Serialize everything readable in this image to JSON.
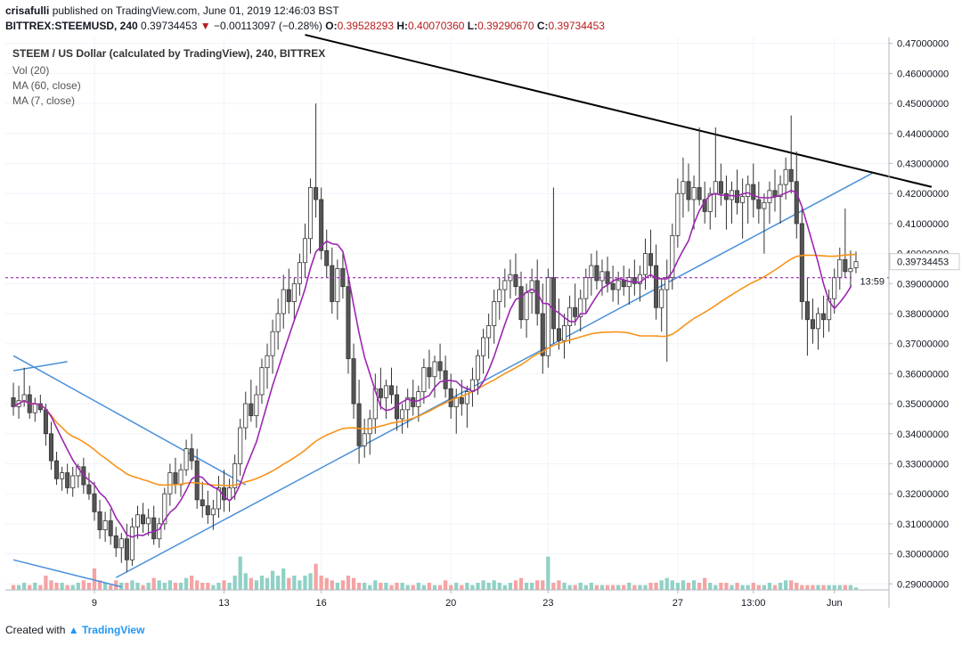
{
  "header": {
    "author": "crisafulli",
    "published": "published on TradingView.com, June 01, 2019 12:46:03 BST",
    "symbol": "BITTREX:STEEMUSD, 240",
    "last": "0.39734453",
    "change_icon": "down-triangle-icon",
    "change": "−0.00113097 (−0.28%)",
    "o_label": "O:",
    "o_value": "0.39528293",
    "h_label": "H:",
    "h_value": "0.40070360",
    "l_label": "L:",
    "l_value": "0.39290670",
    "c_label": "C:",
    "c_value": "0.39734453"
  },
  "legend": {
    "title": "STEEM / US Dollar (calculated by TradingView), 240, BITTREX",
    "vol": "Vol (20)",
    "ma60": "MA (60, close)",
    "ma7": "MA (7, close)"
  },
  "footer": {
    "created_with": "Created with",
    "brand": "TradingView",
    "logo_icon": "tradingview-logo-icon"
  },
  "colors": {
    "candle_up": "#ffffff",
    "candle_down": "#555555",
    "wick": "#333333",
    "ma60": "#f7931a",
    "ma7": "#9c27b0",
    "trend": "#4a90d9",
    "resistance": "#000000",
    "price_line": "#9c27b0",
    "vol_up": "#8fd1c5",
    "vol_down": "#f5a3a3",
    "grid": "#f0f3fa"
  },
  "chart_data": {
    "type": "candlestick",
    "title": "STEEM / US Dollar (calculated by TradingView), 240, BITTREX",
    "grid": true,
    "y_axis": {
      "min": 0.288,
      "max": 0.472,
      "ticks": [
        "0.47000000",
        "0.46000000",
        "0.45000000",
        "0.44000000",
        "0.43000000",
        "0.42000000",
        "0.41000000",
        "0.40000000",
        "0.39000000",
        "0.38000000",
        "0.37000000",
        "0.36000000",
        "0.35000000",
        "0.34000000",
        "0.33000000",
        "0.32000000",
        "0.31000000",
        "0.30000000",
        "0.29000000"
      ],
      "tick_values": [
        0.47,
        0.46,
        0.45,
        0.44,
        0.43,
        0.42,
        0.41,
        0.4,
        0.39,
        0.38,
        0.37,
        0.36,
        0.35,
        0.34,
        0.33,
        0.32,
        0.31,
        0.3,
        0.29
      ]
    },
    "x_axis": {
      "ticks": [
        {
          "label": "9",
          "i": 15
        },
        {
          "label": "13",
          "i": 39
        },
        {
          "label": "16",
          "i": 57
        },
        {
          "label": "20",
          "i": 81
        },
        {
          "label": "23",
          "i": 99
        },
        {
          "label": "27",
          "i": 123
        },
        {
          "label": "13:00",
          "i": 137
        },
        {
          "label": "Jun",
          "i": 152
        }
      ]
    },
    "last_price": "0.39734453",
    "countdown": "13:59",
    "candles": [
      [
        0.352,
        0.357,
        0.346,
        0.349
      ],
      [
        0.349,
        0.356,
        0.345,
        0.351
      ],
      [
        0.351,
        0.362,
        0.349,
        0.353
      ],
      [
        0.353,
        0.356,
        0.345,
        0.347
      ],
      [
        0.347,
        0.352,
        0.344,
        0.35
      ],
      [
        0.35,
        0.353,
        0.347,
        0.348
      ],
      [
        0.348,
        0.35,
        0.336,
        0.34
      ],
      [
        0.34,
        0.344,
        0.328,
        0.331
      ],
      [
        0.331,
        0.334,
        0.323,
        0.325
      ],
      [
        0.325,
        0.329,
        0.321,
        0.327
      ],
      [
        0.327,
        0.33,
        0.32,
        0.322
      ],
      [
        0.322,
        0.329,
        0.319,
        0.326
      ],
      [
        0.326,
        0.33,
        0.322,
        0.329
      ],
      [
        0.329,
        0.332,
        0.32,
        0.323
      ],
      [
        0.323,
        0.327,
        0.318,
        0.32
      ],
      [
        0.32,
        0.324,
        0.311,
        0.314
      ],
      [
        0.314,
        0.318,
        0.305,
        0.308
      ],
      [
        0.308,
        0.314,
        0.304,
        0.311
      ],
      [
        0.311,
        0.315,
        0.303,
        0.306
      ],
      [
        0.306,
        0.309,
        0.299,
        0.302
      ],
      [
        0.302,
        0.307,
        0.297,
        0.305
      ],
      [
        0.305,
        0.31,
        0.294,
        0.298
      ],
      [
        0.298,
        0.312,
        0.296,
        0.309
      ],
      [
        0.309,
        0.316,
        0.305,
        0.313
      ],
      [
        0.313,
        0.317,
        0.307,
        0.31
      ],
      [
        0.31,
        0.315,
        0.306,
        0.312
      ],
      [
        0.312,
        0.316,
        0.303,
        0.305
      ],
      [
        0.305,
        0.312,
        0.302,
        0.31
      ],
      [
        0.31,
        0.322,
        0.308,
        0.32
      ],
      [
        0.32,
        0.33,
        0.316,
        0.327
      ],
      [
        0.327,
        0.332,
        0.32,
        0.323
      ],
      [
        0.323,
        0.33,
        0.319,
        0.328
      ],
      [
        0.328,
        0.338,
        0.326,
        0.335
      ],
      [
        0.335,
        0.34,
        0.328,
        0.331
      ],
      [
        0.331,
        0.335,
        0.315,
        0.318
      ],
      [
        0.318,
        0.324,
        0.312,
        0.316
      ],
      [
        0.316,
        0.321,
        0.31,
        0.313
      ],
      [
        0.313,
        0.318,
        0.308,
        0.315
      ],
      [
        0.315,
        0.326,
        0.312,
        0.322
      ],
      [
        0.322,
        0.328,
        0.314,
        0.318
      ],
      [
        0.318,
        0.325,
        0.314,
        0.322
      ],
      [
        0.322,
        0.333,
        0.318,
        0.33
      ],
      [
        0.33,
        0.345,
        0.326,
        0.342
      ],
      [
        0.342,
        0.354,
        0.338,
        0.35
      ],
      [
        0.35,
        0.358,
        0.344,
        0.346
      ],
      [
        0.346,
        0.356,
        0.342,
        0.353
      ],
      [
        0.353,
        0.365,
        0.35,
        0.362
      ],
      [
        0.362,
        0.37,
        0.355,
        0.366
      ],
      [
        0.366,
        0.378,
        0.36,
        0.374
      ],
      [
        0.374,
        0.385,
        0.368,
        0.38
      ],
      [
        0.38,
        0.393,
        0.375,
        0.388
      ],
      [
        0.388,
        0.395,
        0.38,
        0.384
      ],
      [
        0.384,
        0.392,
        0.378,
        0.39
      ],
      [
        0.39,
        0.4,
        0.386,
        0.397
      ],
      [
        0.397,
        0.41,
        0.392,
        0.405
      ],
      [
        0.405,
        0.425,
        0.4,
        0.422
      ],
      [
        0.422,
        0.45,
        0.412,
        0.418
      ],
      [
        0.418,
        0.422,
        0.398,
        0.401
      ],
      [
        0.401,
        0.408,
        0.392,
        0.396
      ],
      [
        0.396,
        0.402,
        0.38,
        0.384
      ],
      [
        0.384,
        0.398,
        0.378,
        0.395
      ],
      [
        0.395,
        0.4,
        0.385,
        0.389
      ],
      [
        0.389,
        0.392,
        0.36,
        0.365
      ],
      [
        0.365,
        0.37,
        0.345,
        0.35
      ],
      [
        0.35,
        0.358,
        0.33,
        0.336
      ],
      [
        0.336,
        0.345,
        0.332,
        0.34
      ],
      [
        0.34,
        0.348,
        0.333,
        0.345
      ],
      [
        0.345,
        0.36,
        0.34,
        0.355
      ],
      [
        0.355,
        0.362,
        0.348,
        0.352
      ],
      [
        0.352,
        0.358,
        0.345,
        0.356
      ],
      [
        0.356,
        0.362,
        0.35,
        0.353
      ],
      [
        0.353,
        0.356,
        0.341,
        0.345
      ],
      [
        0.345,
        0.35,
        0.34,
        0.348
      ],
      [
        0.348,
        0.355,
        0.342,
        0.352
      ],
      [
        0.352,
        0.358,
        0.346,
        0.349
      ],
      [
        0.349,
        0.356,
        0.344,
        0.354
      ],
      [
        0.354,
        0.365,
        0.35,
        0.362
      ],
      [
        0.362,
        0.368,
        0.355,
        0.359
      ],
      [
        0.359,
        0.366,
        0.352,
        0.364
      ],
      [
        0.364,
        0.37,
        0.358,
        0.361
      ],
      [
        0.361,
        0.366,
        0.352,
        0.355
      ],
      [
        0.355,
        0.36,
        0.345,
        0.349
      ],
      [
        0.349,
        0.355,
        0.34,
        0.352
      ],
      [
        0.352,
        0.358,
        0.346,
        0.35
      ],
      [
        0.35,
        0.356,
        0.342,
        0.354
      ],
      [
        0.354,
        0.362,
        0.349,
        0.358
      ],
      [
        0.358,
        0.368,
        0.353,
        0.366
      ],
      [
        0.366,
        0.375,
        0.36,
        0.372
      ],
      [
        0.372,
        0.38,
        0.365,
        0.376
      ],
      [
        0.376,
        0.388,
        0.37,
        0.384
      ],
      [
        0.384,
        0.392,
        0.378,
        0.388
      ],
      [
        0.388,
        0.395,
        0.382,
        0.391
      ],
      [
        0.391,
        0.398,
        0.385,
        0.393
      ],
      [
        0.393,
        0.4,
        0.386,
        0.389
      ],
      [
        0.389,
        0.394,
        0.375,
        0.378
      ],
      [
        0.378,
        0.39,
        0.372,
        0.387
      ],
      [
        0.387,
        0.395,
        0.38,
        0.391
      ],
      [
        0.391,
        0.398,
        0.376,
        0.38
      ],
      [
        0.38,
        0.39,
        0.36,
        0.366
      ],
      [
        0.366,
        0.395,
        0.362,
        0.392
      ],
      [
        0.392,
        0.422,
        0.37,
        0.375
      ],
      [
        0.375,
        0.385,
        0.368,
        0.371
      ],
      [
        0.371,
        0.38,
        0.365,
        0.376
      ],
      [
        0.376,
        0.386,
        0.37,
        0.382
      ],
      [
        0.382,
        0.39,
        0.376,
        0.379
      ],
      [
        0.379,
        0.388,
        0.374,
        0.385
      ],
      [
        0.385,
        0.395,
        0.38,
        0.392
      ],
      [
        0.392,
        0.4,
        0.386,
        0.396
      ],
      [
        0.396,
        0.401,
        0.388,
        0.391
      ],
      [
        0.391,
        0.398,
        0.386,
        0.394
      ],
      [
        0.394,
        0.399,
        0.387,
        0.39
      ],
      [
        0.39,
        0.396,
        0.384,
        0.388
      ],
      [
        0.388,
        0.394,
        0.383,
        0.391
      ],
      [
        0.391,
        0.396,
        0.386,
        0.389
      ],
      [
        0.389,
        0.395,
        0.383,
        0.392
      ],
      [
        0.392,
        0.398,
        0.386,
        0.39
      ],
      [
        0.39,
        0.396,
        0.384,
        0.393
      ],
      [
        0.393,
        0.405,
        0.388,
        0.4
      ],
      [
        0.4,
        0.408,
        0.392,
        0.396
      ],
      [
        0.396,
        0.403,
        0.378,
        0.382
      ],
      [
        0.382,
        0.392,
        0.374,
        0.388
      ],
      [
        0.388,
        0.398,
        0.364,
        0.392
      ],
      [
        0.392,
        0.41,
        0.388,
        0.406
      ],
      [
        0.406,
        0.425,
        0.402,
        0.42
      ],
      [
        0.42,
        0.432,
        0.412,
        0.424
      ],
      [
        0.424,
        0.43,
        0.414,
        0.418
      ],
      [
        0.418,
        0.426,
        0.408,
        0.422
      ],
      [
        0.422,
        0.442,
        0.416,
        0.418
      ],
      [
        0.418,
        0.424,
        0.41,
        0.414
      ],
      [
        0.414,
        0.422,
        0.408,
        0.42
      ],
      [
        0.42,
        0.442,
        0.412,
        0.424
      ],
      [
        0.424,
        0.43,
        0.416,
        0.42
      ],
      [
        0.42,
        0.426,
        0.408,
        0.418
      ],
      [
        0.418,
        0.424,
        0.41,
        0.421
      ],
      [
        0.421,
        0.428,
        0.413,
        0.417
      ],
      [
        0.417,
        0.425,
        0.405,
        0.419
      ],
      [
        0.419,
        0.426,
        0.41,
        0.423
      ],
      [
        0.423,
        0.43,
        0.412,
        0.418
      ],
      [
        0.418,
        0.424,
        0.41,
        0.415
      ],
      [
        0.415,
        0.42,
        0.4,
        0.417
      ],
      [
        0.417,
        0.424,
        0.41,
        0.421
      ],
      [
        0.421,
        0.428,
        0.414,
        0.419
      ],
      [
        0.419,
        0.426,
        0.41,
        0.423
      ],
      [
        0.423,
        0.432,
        0.418,
        0.428
      ],
      [
        0.428,
        0.446,
        0.42,
        0.424
      ],
      [
        0.424,
        0.434,
        0.405,
        0.41
      ],
      [
        0.41,
        0.415,
        0.378,
        0.384
      ],
      [
        0.384,
        0.392,
        0.366,
        0.378
      ],
      [
        0.378,
        0.385,
        0.37,
        0.375
      ],
      [
        0.375,
        0.382,
        0.368,
        0.38
      ],
      [
        0.38,
        0.386,
        0.372,
        0.378
      ],
      [
        0.378,
        0.388,
        0.374,
        0.385
      ],
      [
        0.385,
        0.395,
        0.38,
        0.392
      ],
      [
        0.392,
        0.402,
        0.388,
        0.398
      ],
      [
        0.398,
        0.415,
        0.392,
        0.394
      ],
      [
        0.394,
        0.401,
        0.389,
        0.395
      ],
      [
        0.3953,
        0.4007,
        0.3929,
        0.3973
      ]
    ],
    "volume_max": 0.06,
    "volume": [
      0.002,
      0.002,
      0.003,
      0.002,
      0.003,
      0.002,
      0.006,
      0.004,
      0.003,
      0.003,
      0.002,
      0.002,
      0.003,
      0.004,
      0.003,
      0.009,
      0.004,
      0.003,
      0.002,
      0.004,
      0.003,
      0.003,
      0.004,
      0.003,
      0.002,
      0.003,
      0.005,
      0.004,
      0.003,
      0.004,
      0.003,
      0.003,
      0.005,
      0.006,
      0.004,
      0.003,
      0.003,
      0.002,
      0.003,
      0.004,
      0.003,
      0.006,
      0.014,
      0.007,
      0.005,
      0.004,
      0.006,
      0.005,
      0.008,
      0.006,
      0.009,
      0.005,
      0.006,
      0.004,
      0.006,
      0.007,
      0.011,
      0.006,
      0.005,
      0.004,
      0.003,
      0.004,
      0.006,
      0.005,
      0.003,
      0.003,
      0.002,
      0.004,
      0.003,
      0.003,
      0.002,
      0.003,
      0.003,
      0.002,
      0.002,
      0.003,
      0.002,
      0.003,
      0.002,
      0.002,
      0.004,
      0.002,
      0.003,
      0.002,
      0.003,
      0.002,
      0.003,
      0.004,
      0.003,
      0.004,
      0.003,
      0.002,
      0.003,
      0.004,
      0.005,
      0.003,
      0.003,
      0.004,
      0.004,
      0.014,
      0.003,
      0.004,
      0.003,
      0.002,
      0.002,
      0.003,
      0.002,
      0.003,
      0.002,
      0.002,
      0.002,
      0.002,
      0.002,
      0.002,
      0.003,
      0.002,
      0.002,
      0.002,
      0.003,
      0.003,
      0.004,
      0.005,
      0.004,
      0.003,
      0.004,
      0.003,
      0.004,
      0.003,
      0.005,
      0.003,
      0.002,
      0.003,
      0.003,
      0.002,
      0.003,
      0.002,
      0.002,
      0.003,
      0.002,
      0.002,
      0.003,
      0.002,
      0.003,
      0.004,
      0.004,
      0.003,
      0.002,
      0.002,
      0.002,
      0.002,
      0.002,
      0.002,
      0.002,
      0.002,
      0.002,
      0.002,
      0.001
    ]
  }
}
